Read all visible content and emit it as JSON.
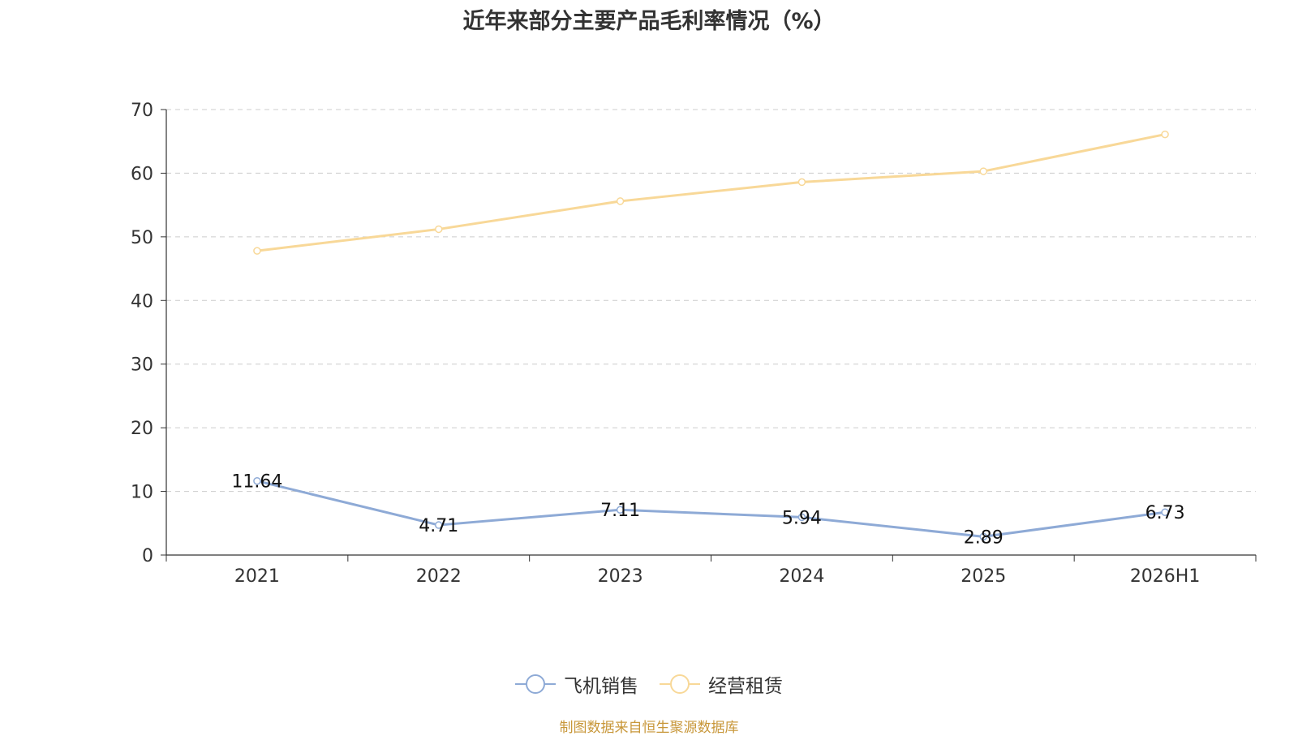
{
  "chart_data": {
    "type": "line",
    "title": "近年来部分主要产品毛利率情况（%）",
    "categories": [
      "2021",
      "2022",
      "2023",
      "2024",
      "2025",
      "2026H1"
    ],
    "series": [
      {
        "name": "飞机销售",
        "values": [
          11.64,
          4.71,
          7.11,
          5.94,
          2.89,
          6.73
        ],
        "color": "#8eaad6",
        "data_labels": [
          "11.64",
          "4.71",
          "7.11",
          "5.94",
          "2.89",
          "6.73"
        ]
      },
      {
        "name": "经营租赁",
        "values": [
          47.8,
          51.2,
          55.6,
          58.6,
          60.3,
          66.1
        ],
        "color": "#f8d898"
      }
    ],
    "ylim": [
      0,
      70
    ],
    "yticks": [
      "0",
      "10",
      "20",
      "30",
      "40",
      "50",
      "60",
      "70"
    ],
    "xlabel": "",
    "ylabel": "",
    "grid": true,
    "legend_position": "bottom"
  },
  "source": "制图数据来自恒生聚源数据库"
}
